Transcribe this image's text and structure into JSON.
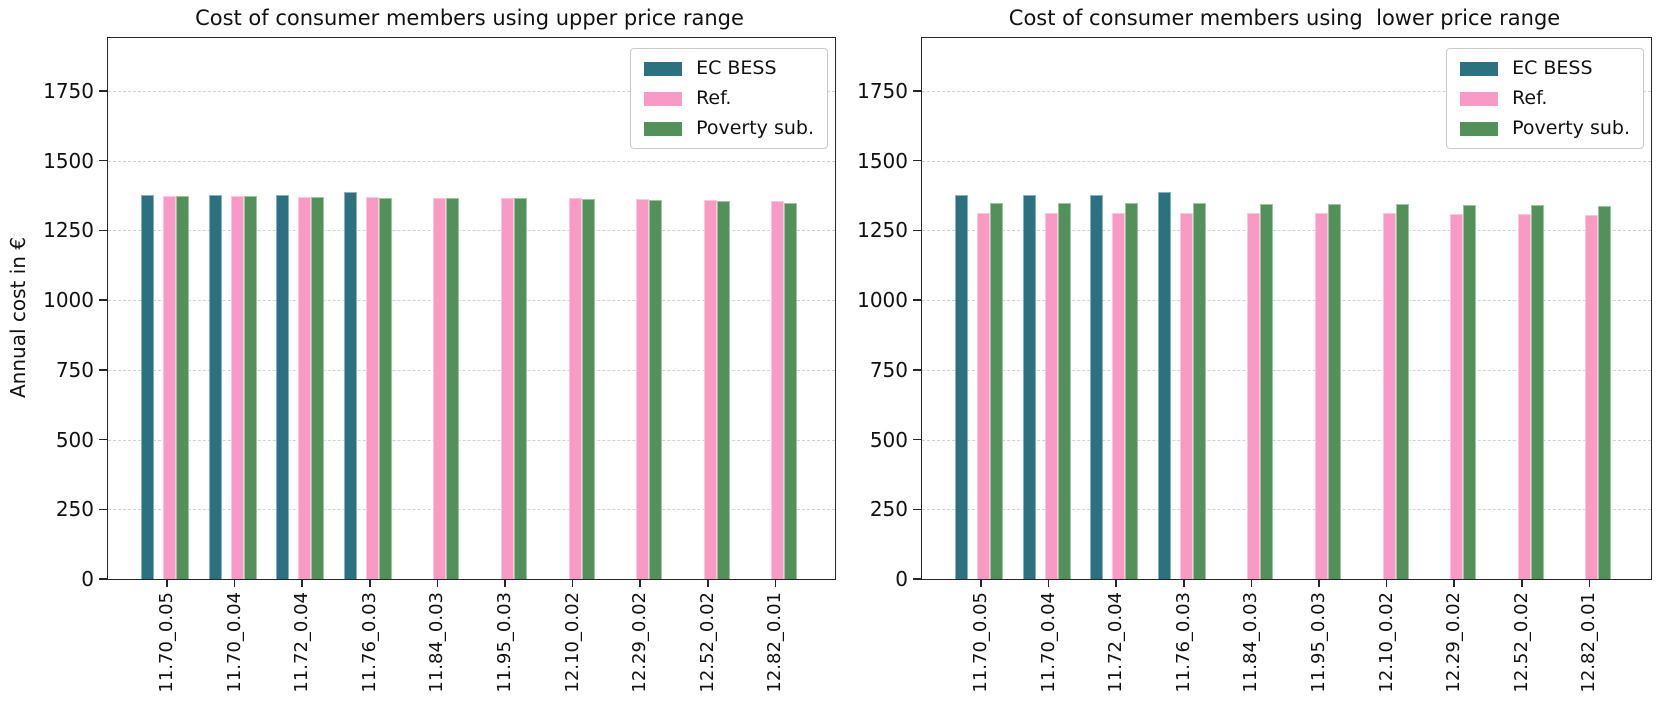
{
  "figure": {
    "background": "#ffffff"
  },
  "chart_data": [
    {
      "type": "bar",
      "title": "Cost of consumer members using upper price range",
      "ylabel": "Annual cost in €",
      "categories": [
        "11.70_0.05",
        "11.70_0.04",
        "11.72_0.04",
        "11.76_0.03",
        "11.84_0.03",
        "11.95_0.03",
        "12.10_0.02",
        "12.29_0.02",
        "12.52_0.02",
        "12.82_0.01"
      ],
      "series": [
        {
          "name": "EC BESS",
          "color": "#2b7180",
          "values": [
            1377,
            1377,
            1377,
            1387,
            null,
            null,
            null,
            null,
            null,
            null
          ]
        },
        {
          "name": "Ref.",
          "color": "#f89ac4",
          "values": [
            1373,
            1372,
            1369,
            1371,
            1368,
            1368,
            1365,
            1362,
            1359,
            1354
          ]
        },
        {
          "name": "Poverty sub.",
          "color": "#52915a",
          "values": [
            1373,
            1372,
            1369,
            1367,
            1367,
            1365,
            1364,
            1360,
            1357,
            1350
          ]
        }
      ],
      "yticks": [
        0,
        250,
        500,
        750,
        1000,
        1250,
        1500,
        1750
      ],
      "ylim": [
        0,
        1940
      ],
      "grid": "horizontal-dashed",
      "legend_position": "upper right",
      "xtick_rotation": 90
    },
    {
      "type": "bar",
      "title": "Cost of consumer members using  lower price range",
      "categories": [
        "11.70_0.05",
        "11.70_0.04",
        "11.72_0.04",
        "11.76_0.03",
        "11.84_0.03",
        "11.95_0.03",
        "12.10_0.02",
        "12.29_0.02",
        "12.52_0.02",
        "12.82_0.01"
      ],
      "series": [
        {
          "name": "EC BESS",
          "color": "#2b7180",
          "values": [
            1377,
            1377,
            1377,
            1387,
            null,
            null,
            null,
            null,
            null,
            null
          ]
        },
        {
          "name": "Ref.",
          "color": "#f89ac4",
          "values": [
            1314,
            1314,
            1313,
            1313,
            1312,
            1311,
            1311,
            1310,
            1309,
            1307
          ]
        },
        {
          "name": "Poverty sub.",
          "color": "#52915a",
          "values": [
            1347,
            1347,
            1347,
            1347,
            1346,
            1345,
            1344,
            1342,
            1340,
            1337
          ]
        }
      ],
      "yticks": [
        0,
        250,
        500,
        750,
        1000,
        1250,
        1500,
        1750
      ],
      "ylim": [
        0,
        1940
      ],
      "grid": "horizontal-dashed",
      "legend_position": "upper right",
      "xtick_rotation": 90
    }
  ]
}
